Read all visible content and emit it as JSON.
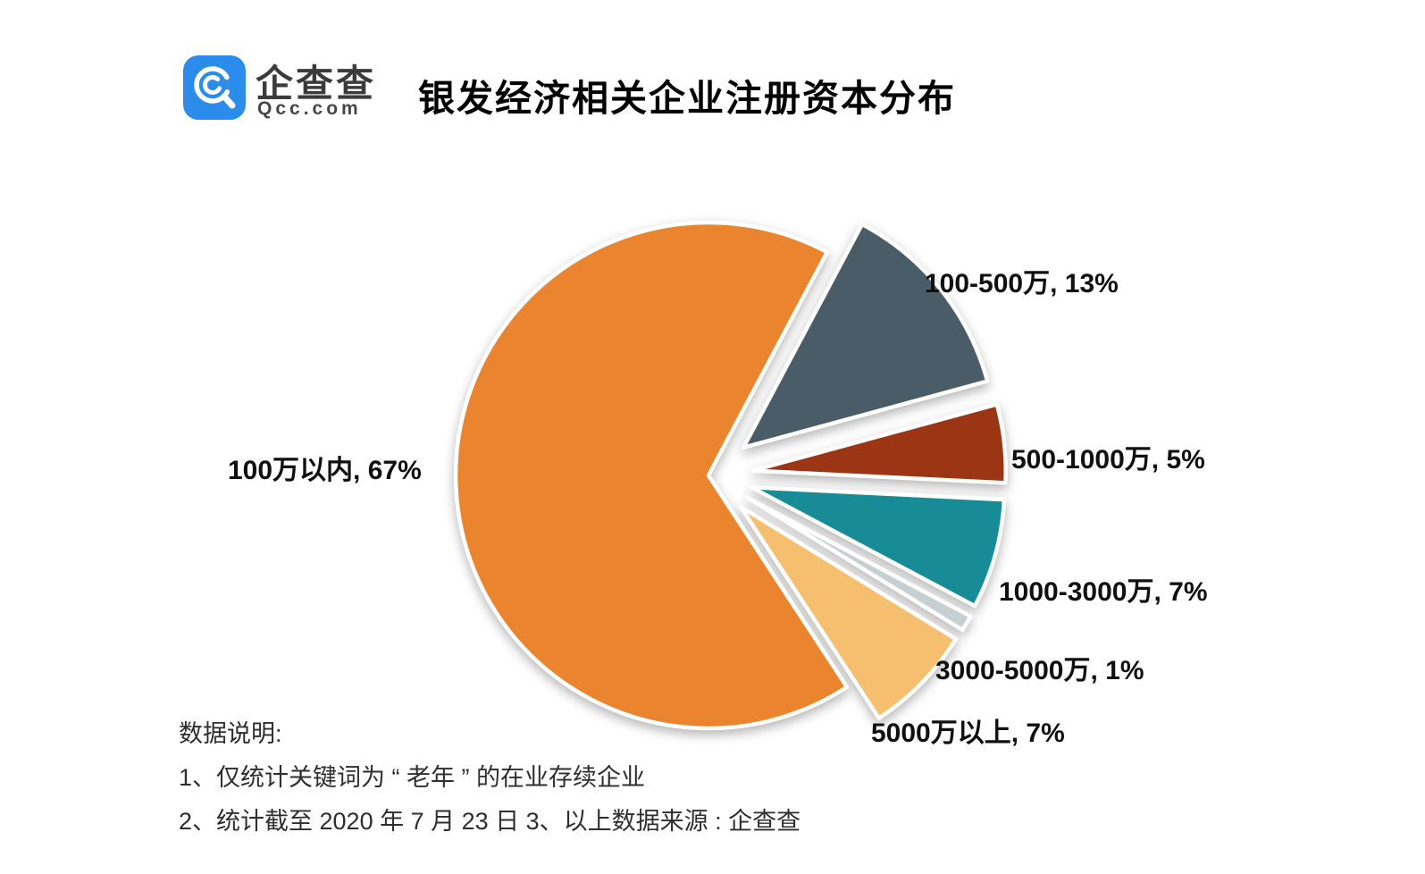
{
  "header": {
    "logo": {
      "brand_cn": "企查查",
      "brand_en": "Qcc.com",
      "square_color": "#2B8CEC",
      "glyph": "magnifier-icon"
    },
    "title": "银发经济相关企业注册资本分布"
  },
  "chart_data": {
    "type": "pie",
    "title": "银发经济相关企业注册资本分布",
    "unit": "%",
    "start_angle_deg": 28,
    "clockwise": true,
    "label_format": "{label}, {value}%",
    "slices": [
      {
        "label": "100-500万",
        "value": 13,
        "color": "#495C68",
        "exploded": true
      },
      {
        "label": "500-1000万",
        "value": 5,
        "color": "#9B3513",
        "exploded": true
      },
      {
        "label": "1000-3000万",
        "value": 7,
        "color": "#178B96",
        "exploded": true
      },
      {
        "label": "3000-5000万",
        "value": 1,
        "color": "#C6CFD2",
        "exploded": true
      },
      {
        "label": "5000万以上",
        "value": 7,
        "color": "#F6BF70",
        "exploded": true
      },
      {
        "label": "100万以内",
        "value": 67,
        "color": "#EB842E",
        "exploded": false
      }
    ]
  },
  "notes": {
    "heading": "数据说明:",
    "line1": "1、仅统计关键词为 “ 老年 ” 的在业存续企业",
    "line2": "2、统计截至 2020 年 7 月 23 日   3、以上数据来源 : 企查查"
  }
}
